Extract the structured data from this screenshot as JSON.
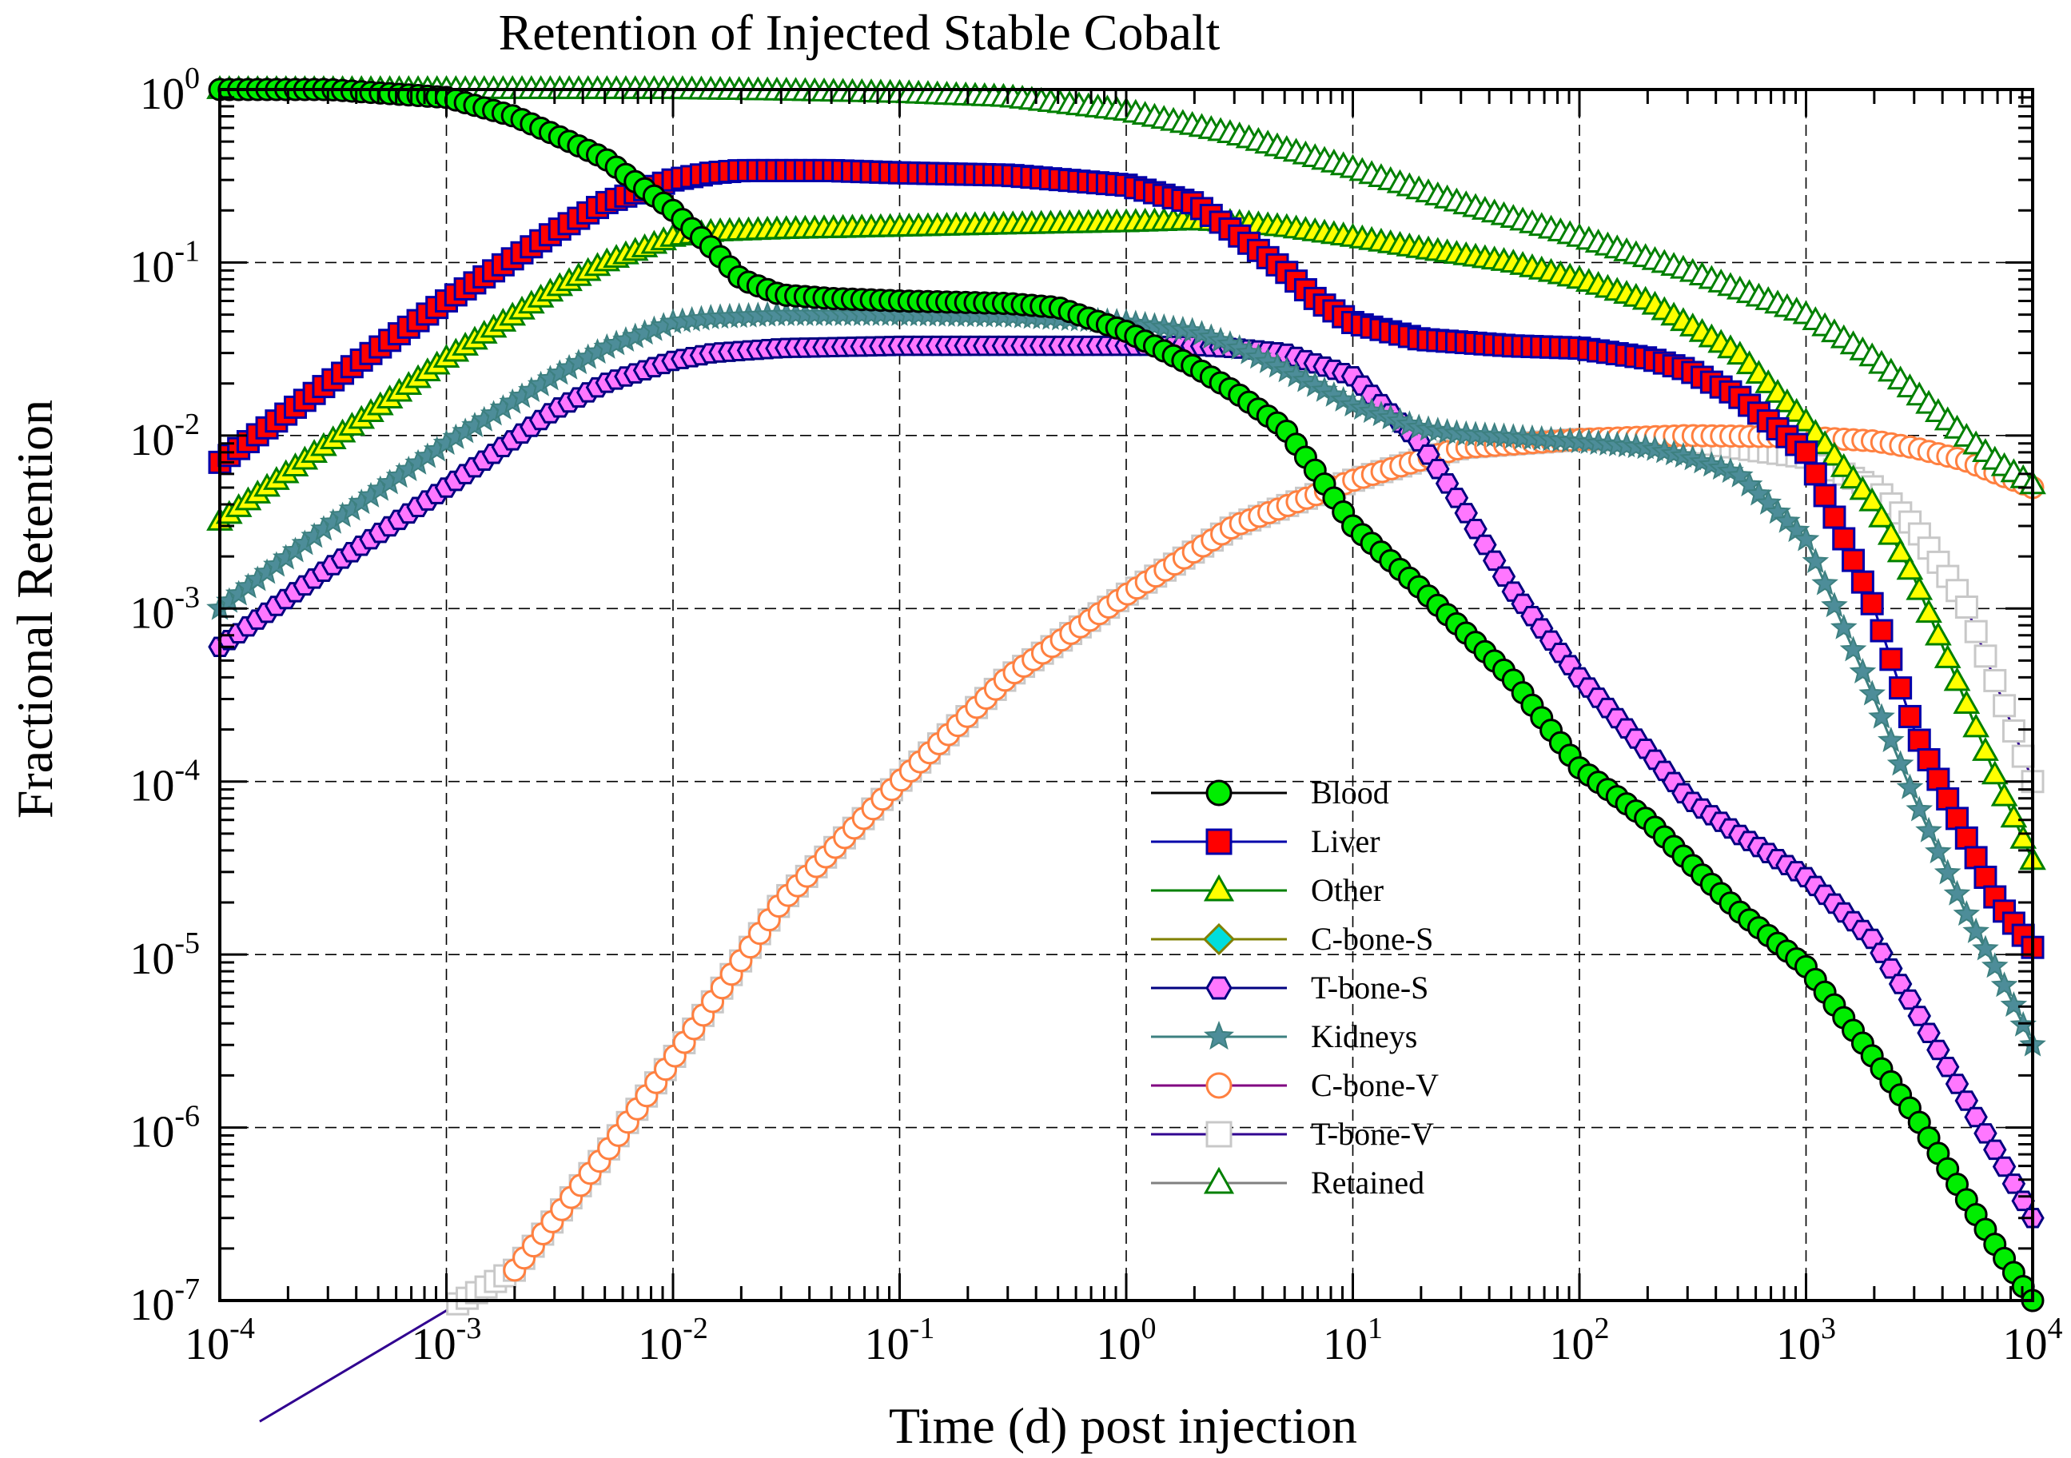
{
  "chart_data": {
    "type": "line",
    "title": "Retention of Injected Stable Cobalt",
    "xlabel": "Time (d) post injection",
    "ylabel": "Fractional Retention",
    "x_scale": "log",
    "y_scale": "log",
    "xlim": [
      0.0001,
      10000
    ],
    "ylim": [
      1e-07,
      1
    ],
    "grid": true,
    "legend_position": "center-right",
    "x_ticks": [
      {
        "base": "10",
        "exp": "-4"
      },
      {
        "base": "10",
        "exp": "-3"
      },
      {
        "base": "10",
        "exp": "-2"
      },
      {
        "base": "10",
        "exp": "-1"
      },
      {
        "base": "10",
        "exp": "0"
      },
      {
        "base": "10",
        "exp": "1"
      },
      {
        "base": "10",
        "exp": "2"
      },
      {
        "base": "10",
        "exp": "3"
      },
      {
        "base": "10",
        "exp": "4"
      }
    ],
    "y_ticks": [
      {
        "base": "10",
        "exp": "0"
      },
      {
        "base": "10",
        "exp": "-1"
      },
      {
        "base": "10",
        "exp": "-2"
      },
      {
        "base": "10",
        "exp": "-3"
      },
      {
        "base": "10",
        "exp": "-4"
      },
      {
        "base": "10",
        "exp": "-5"
      },
      {
        "base": "10",
        "exp": "-6"
      },
      {
        "base": "10",
        "exp": "-7"
      }
    ],
    "series": [
      {
        "name": "Blood",
        "marker": "circle",
        "line_color": "#000000",
        "marker_fill": "#00ee00",
        "marker_stroke": "#000000",
        "x": [
          0.0001,
          0.0003,
          0.001,
          0.002,
          0.003,
          0.005,
          0.01,
          0.015,
          0.02,
          0.03,
          0.05,
          0.1,
          0.3,
          0.5,
          1,
          2,
          3,
          5,
          7,
          10,
          20,
          50,
          100,
          200,
          300,
          500,
          1000,
          2000,
          3000,
          5000,
          7000,
          10000
        ],
        "y": [
          1,
          1,
          0.9,
          0.7,
          0.55,
          0.4,
          0.2,
          0.12,
          0.08,
          0.065,
          0.062,
          0.06,
          0.058,
          0.055,
          0.04,
          0.025,
          0.018,
          0.011,
          0.006,
          0.003,
          0.0013,
          0.0004,
          0.00012,
          6e-05,
          3.5e-05,
          1.8e-05,
          8.5e-06,
          2.5e-06,
          1.2e-06,
          4e-07,
          2e-07,
          1e-07
        ]
      },
      {
        "name": "Liver",
        "marker": "square",
        "line_color": "#0000aa",
        "marker_fill": "#ff0000",
        "marker_stroke": "#0000aa",
        "x": [
          0.0001,
          0.0003,
          0.001,
          0.003,
          0.005,
          0.01,
          0.015,
          0.02,
          0.03,
          0.05,
          0.1,
          0.3,
          1,
          2,
          3,
          5,
          7,
          10,
          20,
          50,
          100,
          200,
          300,
          500,
          1000,
          2000,
          3000,
          5000,
          7000,
          10000
        ],
        "y": [
          0.007,
          0.02,
          0.06,
          0.15,
          0.22,
          0.3,
          0.33,
          0.34,
          0.34,
          0.34,
          0.33,
          0.32,
          0.28,
          0.22,
          0.15,
          0.09,
          0.06,
          0.045,
          0.036,
          0.033,
          0.032,
          0.028,
          0.024,
          0.017,
          0.008,
          0.001,
          0.0002,
          5e-05,
          2e-05,
          1.1e-05
        ]
      },
      {
        "name": "Other",
        "marker": "triangle",
        "line_color": "#008000",
        "marker_fill": "#ffff00",
        "marker_stroke": "#008000",
        "x": [
          0.0001,
          0.0003,
          0.001,
          0.003,
          0.005,
          0.01,
          0.015,
          0.03,
          0.1,
          0.3,
          1,
          2,
          3,
          5,
          10,
          20,
          50,
          100,
          200,
          500,
          1000,
          2000,
          3000,
          5000,
          7000,
          10000
        ],
        "y": [
          0.0032,
          0.009,
          0.028,
          0.07,
          0.1,
          0.14,
          0.15,
          0.155,
          0.16,
          0.165,
          0.17,
          0.175,
          0.17,
          0.16,
          0.14,
          0.12,
          0.1,
          0.08,
          0.06,
          0.03,
          0.012,
          0.004,
          0.0015,
          0.0003,
          0.0001,
          3.5e-05
        ]
      },
      {
        "name": "C-bone-S",
        "marker": "diamond",
        "line_color": "#808000",
        "marker_fill": "#00dddd",
        "marker_stroke": "#808000",
        "x": [],
        "y": []
      },
      {
        "name": "T-bone-S",
        "marker": "hexagon",
        "line_color": "#000080",
        "marker_fill": "#ff77ff",
        "marker_stroke": "#000080",
        "x": [
          0.0001,
          0.0003,
          0.001,
          0.003,
          0.005,
          0.01,
          0.015,
          0.03,
          0.1,
          0.3,
          1,
          2,
          3,
          5,
          10,
          20,
          30,
          50,
          100,
          200,
          300,
          500,
          1000,
          2000,
          3000,
          5000,
          7000,
          10000
        ],
        "y": [
          0.0006,
          0.0017,
          0.005,
          0.014,
          0.02,
          0.027,
          0.03,
          0.032,
          0.033,
          0.033,
          0.033,
          0.033,
          0.032,
          0.03,
          0.022,
          0.009,
          0.004,
          0.0013,
          0.0004,
          0.00015,
          8e-05,
          5e-05,
          2.8e-05,
          1.2e-05,
          5e-06,
          1.5e-06,
          7e-07,
          3e-07
        ]
      },
      {
        "name": "Kidneys",
        "marker": "star",
        "line_color": "#3d8080",
        "marker_fill": "#4d8d99",
        "marker_stroke": "#3d8080",
        "x": [
          0.0001,
          0.0003,
          0.001,
          0.003,
          0.005,
          0.01,
          0.015,
          0.03,
          0.1,
          0.3,
          1,
          2,
          3,
          5,
          10,
          20,
          30,
          50,
          100,
          200,
          300,
          500,
          1000,
          2000,
          3000,
          5000,
          7000,
          10000
        ],
        "y": [
          0.001,
          0.003,
          0.009,
          0.022,
          0.032,
          0.045,
          0.048,
          0.05,
          0.05,
          0.049,
          0.045,
          0.04,
          0.033,
          0.024,
          0.015,
          0.011,
          0.0102,
          0.0098,
          0.0092,
          0.0085,
          0.0075,
          0.006,
          0.0025,
          0.0003,
          8e-05,
          1.8e-05,
          8e-06,
          3e-06
        ]
      },
      {
        "name": "C-bone-V",
        "marker": "open-circle",
        "line_color": "#800080",
        "marker_fill": "#ffffff",
        "marker_stroke": "#ff8040",
        "x": [
          0.002,
          0.005,
          0.01,
          0.03,
          0.1,
          0.3,
          1,
          3,
          10,
          30,
          100,
          300,
          1000,
          2000,
          3000,
          5000,
          7000,
          10000
        ],
        "y": [
          1.5e-07,
          7e-07,
          2.5e-06,
          2e-05,
          0.0001,
          0.0004,
          0.0012,
          0.003,
          0.0055,
          0.0085,
          0.0095,
          0.01,
          0.0098,
          0.0093,
          0.0085,
          0.0072,
          0.006,
          0.005
        ]
      },
      {
        "name": "T-bone-V",
        "marker": "open-square",
        "line_color": "#300090",
        "marker_fill": "#ffffff",
        "marker_stroke": "#c8c8c8",
        "x": [
          0.00015,
          0.002,
          0.005,
          0.01,
          0.03,
          0.1,
          0.3,
          1,
          3,
          10,
          30,
          100,
          300,
          1000,
          2000,
          3000,
          5000,
          7000,
          10000
        ],
        "y": [
          2e-08,
          1.5e-07,
          7e-07,
          2.5e-06,
          2e-05,
          0.0001,
          0.0004,
          0.0012,
          0.003,
          0.0055,
          0.0085,
          0.0095,
          0.0093,
          0.0075,
          0.005,
          0.003,
          0.0011,
          0.00035,
          0.0001
        ]
      },
      {
        "name": "Retained",
        "marker": "open-triangle",
        "line_color": "#808080",
        "marker_fill": "#ffffff",
        "marker_stroke": "#008000",
        "x": [
          0.0001,
          0.001,
          0.01,
          0.03,
          0.1,
          0.3,
          1,
          3,
          10,
          30,
          100,
          300,
          1000,
          2000,
          3000,
          5000,
          7000,
          10000
        ],
        "y": [
          1,
          1,
          1,
          0.98,
          0.95,
          0.9,
          0.75,
          0.55,
          0.35,
          0.22,
          0.14,
          0.09,
          0.05,
          0.028,
          0.018,
          0.01,
          0.007,
          0.0052
        ]
      }
    ]
  }
}
